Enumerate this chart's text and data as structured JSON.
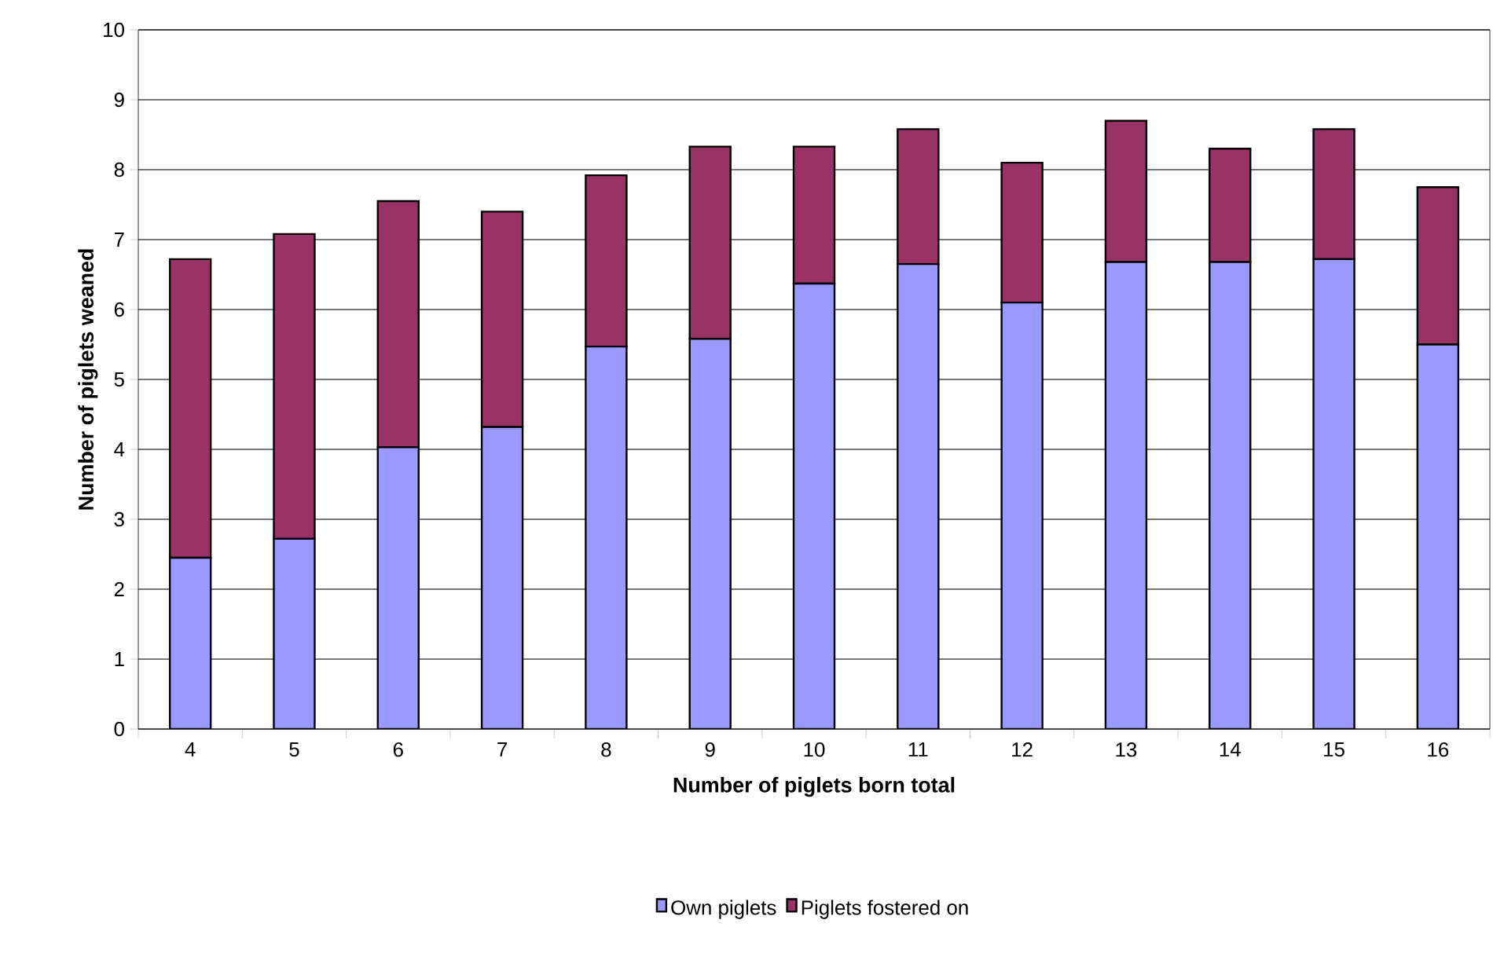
{
  "chart_data": {
    "type": "bar",
    "stacked": true,
    "xlabel": "Number of piglets born total",
    "ylabel": "Number of piglets weaned",
    "categories": [
      "4",
      "5",
      "6",
      "7",
      "8",
      "9",
      "10",
      "11",
      "12",
      "13",
      "14",
      "15",
      "16"
    ],
    "series": [
      {
        "name": "Own piglets",
        "color": "#9999ff",
        "values": [
          2.45,
          2.72,
          4.03,
          4.32,
          5.47,
          5.58,
          6.37,
          6.65,
          6.1,
          6.68,
          6.68,
          6.72,
          5.5
        ]
      },
      {
        "name": "Piglets fostered on",
        "color": "#993366",
        "values": [
          4.27,
          4.36,
          3.52,
          3.08,
          2.45,
          2.75,
          1.96,
          1.93,
          2.0,
          2.02,
          1.62,
          1.86,
          2.25
        ]
      }
    ],
    "ylim": [
      0,
      10
    ],
    "yticks": [
      0,
      1,
      2,
      3,
      4,
      5,
      6,
      7,
      8,
      9,
      10
    ],
    "grid": "y",
    "legend": "bottom"
  }
}
